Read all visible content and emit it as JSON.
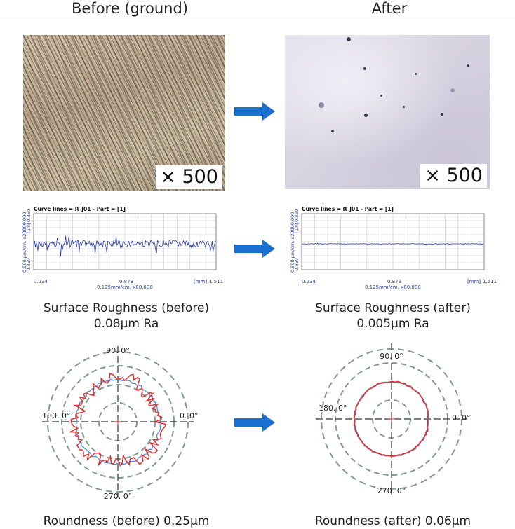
{
  "columns": {
    "before_title": "Before (ground)",
    "after_title": "After"
  },
  "micrographs": {
    "before_magnification": "× 500",
    "after_magnification": "× 500"
  },
  "roughness": {
    "before": {
      "chart_title": "Curve lines = R_J01 - Part = [1]",
      "y_axis_label": "0.500 µm/cm, x20000.000",
      "y_unit": "[µm]",
      "y_max": "0.859",
      "y_min": "-0.859",
      "x_start": "0.234",
      "x_mid": "0.873",
      "x_scale": "0.125mm/cm, x80.000",
      "x_end_unit": "[mm]",
      "x_end": "1.511",
      "caption_line1": "Surface Roughness (before)",
      "caption_line2": "0.08μm Ra"
    },
    "after": {
      "chart_title": "Curve lines = R_J01 - Part = [1]",
      "y_axis_label": "0.500 µm/cm, x20000.000",
      "y_unit": "[µm]",
      "y_max": "0.859",
      "y_min": "-0.859",
      "x_start": "0.234",
      "x_mid": "0.873",
      "x_scale": "0.125mm/cm, x80.000",
      "x_end_unit": "[mm]",
      "x_end": "1.511",
      "caption_line1": "Surface Roughness (after)",
      "caption_line2": "0.005μm Ra"
    }
  },
  "roundness": {
    "angles": {
      "top": "90. 0°",
      "left": "180. 0°",
      "right": "0. 0°",
      "bottom": "270. 0°"
    },
    "before_caption": "Roundness (before)  0.25μm",
    "after_caption": "Roundness (after) 0.06μm"
  },
  "colors": {
    "arrow": "#1a6fd0",
    "trace": "#2b3fb0",
    "red_profile": "#e03030",
    "blue_profile": "#4f8fe0",
    "grid": "#9a9a9a",
    "dashed_ring": "#7f9a90"
  },
  "chart_data": {
    "type": "line",
    "title": "Curve lines = R_J01 - Part = [1]",
    "x_ticks": [
      "0.234",
      "0.873",
      "1.511"
    ],
    "ylim": [
      -0.859,
      0.859
    ],
    "series": [
      {
        "name": "Surface Roughness (before)",
        "Ra_um": 0.08
      },
      {
        "name": "Surface Roughness (after)",
        "Ra_um": 0.005
      }
    ]
  }
}
